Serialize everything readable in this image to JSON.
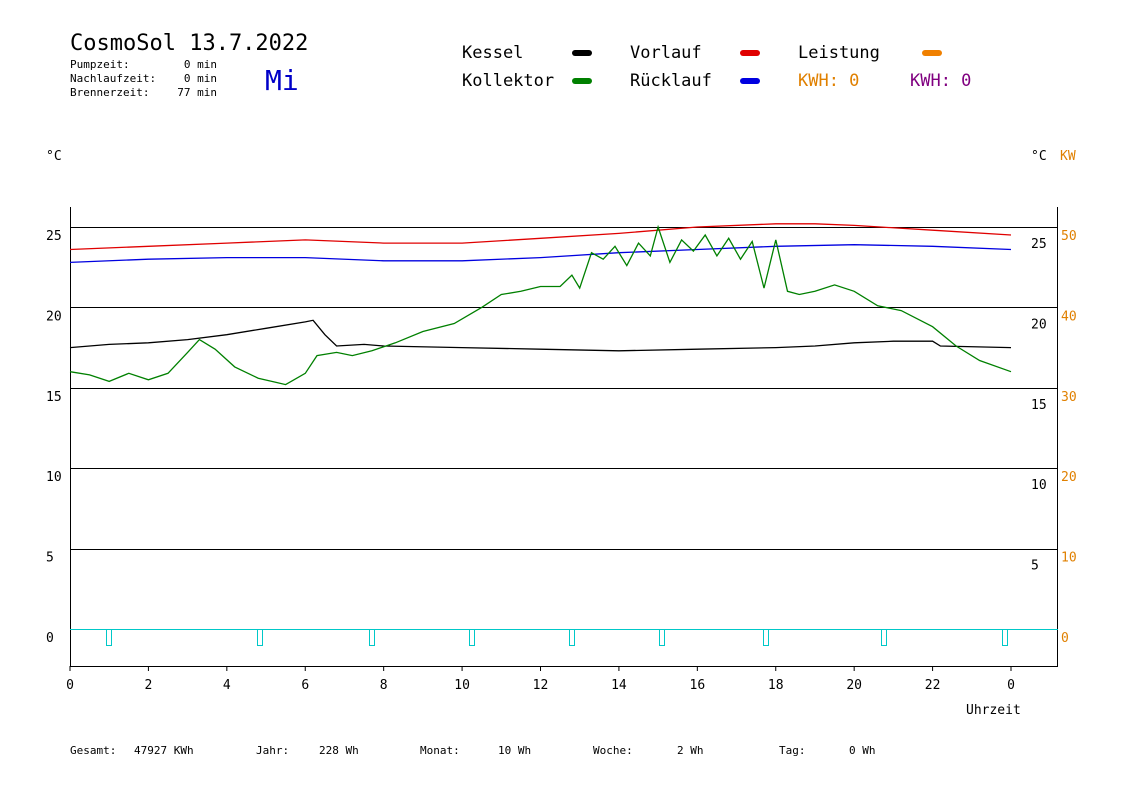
{
  "header": {
    "title": "CosmoSol 13.7.2022",
    "weekday": "Mi",
    "stats": [
      {
        "label": "Pumpzeit:",
        "value": "0 min"
      },
      {
        "label": "Nachlaufzeit:",
        "value": "0 min"
      },
      {
        "label": "Brennerzeit:",
        "value": "77 min"
      }
    ]
  },
  "legend": {
    "items": [
      {
        "label": "Kessel",
        "color": "#000000"
      },
      {
        "label": "Kollektor",
        "color": "#008000"
      },
      {
        "label": "Vorlauf",
        "color": "#e00000"
      },
      {
        "label": "Rücklauf",
        "color": "#0000e0"
      },
      {
        "label": "Leistung",
        "color": "#f08000"
      }
    ],
    "kwh_orange": "KWH: 0",
    "kwh_purple": "KWH: 0",
    "kwh_orange_color": "#e08000",
    "kwh_purple_color": "#800080"
  },
  "axes": {
    "left_unit": "°C",
    "right_unit_c": "°C",
    "right_unit_kw": "KW",
    "xlabel": "Uhrzeit"
  },
  "footer": [
    {
      "label": "Gesamt:",
      "value": "47927 KWh"
    },
    {
      "label": "Jahr:",
      "value": "228 Wh"
    },
    {
      "label": "Monat:",
      "value": "10 Wh"
    },
    {
      "label": "Woche:",
      "value": "2 Wh"
    },
    {
      "label": "Tag:",
      "value": "0 Wh"
    }
  ],
  "chart_data": {
    "type": "line",
    "xlabel": "Uhrzeit",
    "xlim": [
      0,
      24
    ],
    "x_tick_labels": [
      "0",
      "2",
      "4",
      "6",
      "8",
      "10",
      "12",
      "14",
      "16",
      "18",
      "20",
      "22",
      "0"
    ],
    "y_left_ticks": [
      25,
      20,
      15,
      10,
      5,
      0
    ],
    "y_left_ylim": [
      -1.5,
      26.5
    ],
    "y_right_c_ticks": [
      25,
      20,
      15,
      10,
      5
    ],
    "y_right_kw_ticks": [
      50,
      40,
      30,
      20,
      10,
      0
    ],
    "grid": "horizontal",
    "series": [
      {
        "name": "Vorlauf",
        "color": "#e00000",
        "x": [
          0,
          2,
          4,
          6,
          8,
          10,
          12,
          14,
          16,
          18,
          19,
          20,
          22,
          24
        ],
        "y": [
          23.6,
          23.8,
          24.0,
          24.2,
          24.0,
          24.0,
          24.3,
          24.6,
          25.0,
          25.2,
          25.2,
          25.1,
          24.8,
          24.5
        ]
      },
      {
        "name": "Rücklauf",
        "color": "#0000e0",
        "x": [
          0,
          2,
          4,
          6,
          8,
          10,
          12,
          14,
          16,
          18,
          20,
          22,
          24
        ],
        "y": [
          22.8,
          23.0,
          23.1,
          23.1,
          22.9,
          22.9,
          23.1,
          23.4,
          23.6,
          23.8,
          23.9,
          23.8,
          23.6
        ]
      },
      {
        "name": "Kessel",
        "color": "#000000",
        "x": [
          0,
          1,
          2,
          3,
          4,
          5,
          6,
          6.2,
          6.5,
          6.8,
          7.5,
          8,
          10,
          12,
          14,
          16,
          18,
          19,
          20,
          21,
          22,
          22.2,
          24
        ],
        "y": [
          17.5,
          17.7,
          17.8,
          18.0,
          18.3,
          18.7,
          19.1,
          19.2,
          18.3,
          17.6,
          17.7,
          17.6,
          17.5,
          17.4,
          17.3,
          17.4,
          17.5,
          17.6,
          17.8,
          17.9,
          17.9,
          17.6,
          17.5
        ]
      },
      {
        "name": "Kollektor",
        "color": "#008000",
        "x": [
          0,
          0.5,
          1.0,
          1.5,
          2.0,
          2.5,
          3.0,
          3.3,
          3.7,
          4.2,
          4.8,
          5.5,
          6.0,
          6.3,
          6.8,
          7.2,
          7.7,
          8.3,
          9.0,
          9.8,
          10.5,
          11.0,
          11.5,
          12.0,
          12.5,
          12.8,
          13.0,
          13.3,
          13.6,
          13.9,
          14.2,
          14.5,
          14.8,
          15.0,
          15.3,
          15.6,
          15.9,
          16.2,
          16.5,
          16.8,
          17.1,
          17.4,
          17.7,
          18.0,
          18.3,
          18.6,
          19.0,
          19.5,
          20.0,
          20.6,
          21.2,
          22.0,
          22.6,
          23.2,
          24.0
        ],
        "y": [
          16.0,
          15.8,
          15.4,
          15.9,
          15.5,
          15.9,
          17.2,
          18.0,
          17.4,
          16.3,
          15.6,
          15.2,
          15.9,
          17.0,
          17.2,
          17.0,
          17.3,
          17.8,
          18.5,
          19.0,
          20.0,
          20.8,
          21.0,
          21.3,
          21.3,
          22.0,
          21.2,
          23.4,
          23.0,
          23.8,
          22.6,
          24.0,
          23.2,
          25.0,
          22.8,
          24.2,
          23.5,
          24.5,
          23.2,
          24.3,
          23.0,
          24.1,
          21.2,
          24.2,
          21.0,
          20.8,
          21.0,
          21.4,
          21.0,
          20.1,
          19.8,
          18.8,
          17.6,
          16.7,
          16.0
        ]
      }
    ]
  }
}
